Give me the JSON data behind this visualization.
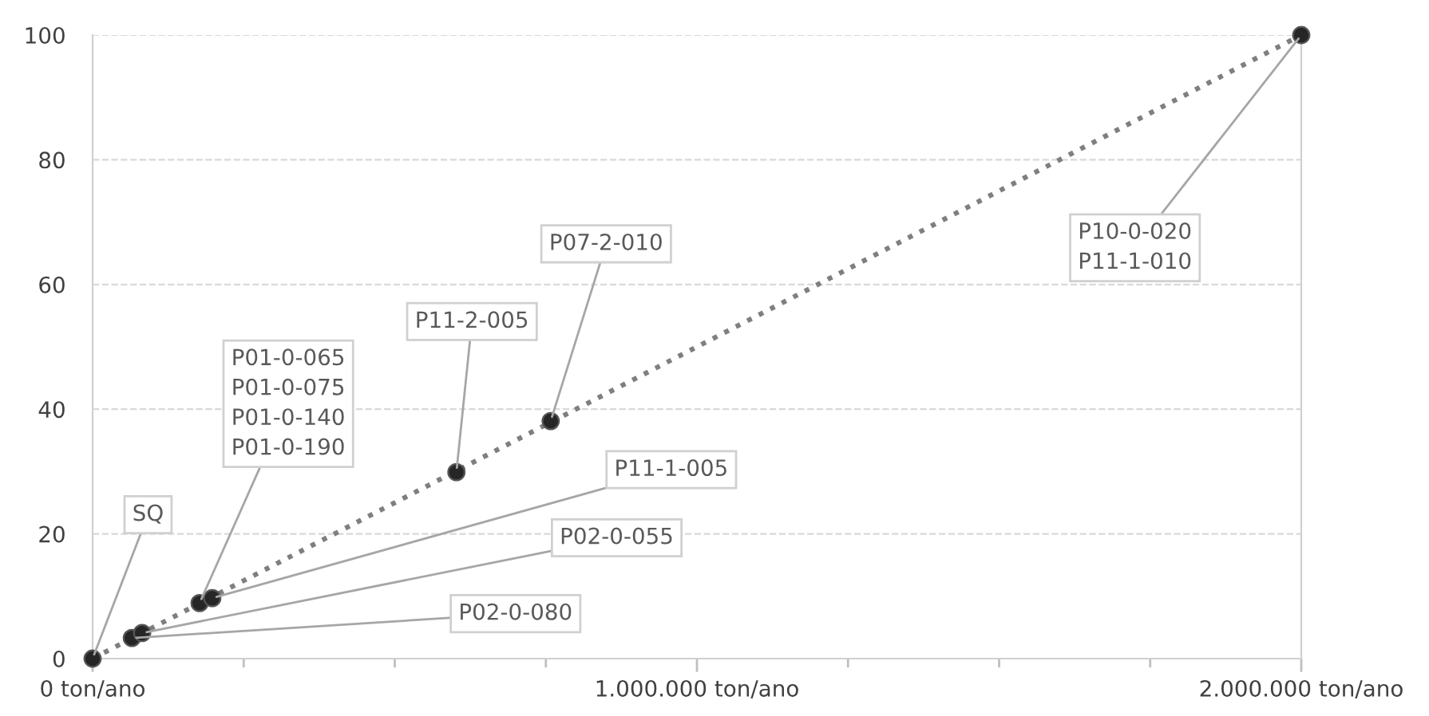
{
  "chart_data": {
    "type": "scatter",
    "series": [
      {
        "type": "line",
        "color": "#7f7f7f",
        "line_style": "dotted",
        "marker": "none",
        "x": [
          0,
          2000000
        ],
        "values": [
          0,
          100
        ]
      },
      {
        "color": "#262626",
        "marker": "circle",
        "x": [
          0,
          65000,
          82000,
          177000,
          198000,
          602000,
          758000,
          2000000
        ],
        "values": [
          0,
          3.3,
          4.1,
          8.9,
          9.7,
          29.9,
          38.1,
          100
        ]
      }
    ],
    "annotations": [
      {
        "text": "SQ",
        "x": 0,
        "y": 0
      },
      {
        "text": "P02-0-080",
        "x": 65000,
        "y": 3.3
      },
      {
        "text": "P02-0-055",
        "x": 82000,
        "y": 4.1
      },
      {
        "text": "P01-0-065\nP01-0-075\nP01-0-140\nP01-0-190",
        "x": 177000,
        "y": 8.9
      },
      {
        "text": "P11-1-005",
        "x": 198000,
        "y": 9.7
      },
      {
        "text": "P11-2-005",
        "x": 602000,
        "y": 29.9
      },
      {
        "text": "P07-2-010",
        "x": 758000,
        "y": 38.1
      },
      {
        "text": "P10-0-020\nP11-1-010",
        "x": 2000000,
        "y": 100
      }
    ],
    "xlim": [
      0,
      2000000
    ],
    "xticks": [
      {
        "value": 0,
        "label": "0 ton/ano"
      },
      {
        "value": 250000,
        "label": null
      },
      {
        "value": 500000,
        "label": null
      },
      {
        "value": 750000,
        "label": null
      },
      {
        "value": 1000000,
        "label": "1.000.000 ton/ano"
      },
      {
        "value": 1250000,
        "label": null
      },
      {
        "value": 1500000,
        "label": null
      },
      {
        "value": 1750000,
        "label": null
      },
      {
        "value": 2000000,
        "label": "2.000.000 ton/ano"
      }
    ],
    "ylim": [
      0,
      100
    ],
    "yticks": [
      0,
      20,
      40,
      60,
      80,
      100
    ],
    "grid": "y",
    "legend": false
  }
}
